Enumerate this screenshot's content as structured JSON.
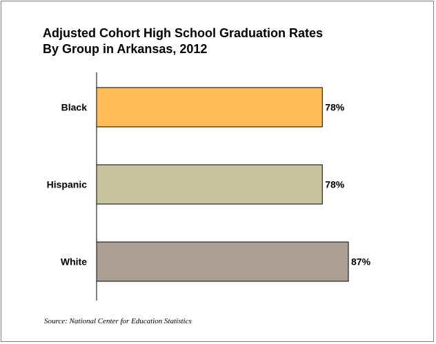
{
  "title_lines": [
    "Adjusted Cohort High School Graduation Rates",
    "By Group in Arkansas, 2012"
  ],
  "source": "Source: National Center for Education Statistics",
  "colors": {
    "black_bar": "#ffbd59",
    "hispanic_bar": "#c6c39d",
    "white_bar": "#ab9f93",
    "bar_stroke": "#000000",
    "axis": "#000000"
  },
  "chart_data": {
    "type": "bar",
    "orientation": "horizontal",
    "title": "Adjusted Cohort High School Graduation Rates By Group in Arkansas, 2012",
    "xlabel": "",
    "ylabel": "",
    "categories": [
      "Black",
      "Hispanic",
      "White"
    ],
    "values": [
      78,
      78,
      87
    ],
    "value_labels": [
      "78%",
      "78%",
      "87%"
    ],
    "unit": "%",
    "xlim": [
      0,
      100
    ],
    "grid": false,
    "legend": "none"
  }
}
